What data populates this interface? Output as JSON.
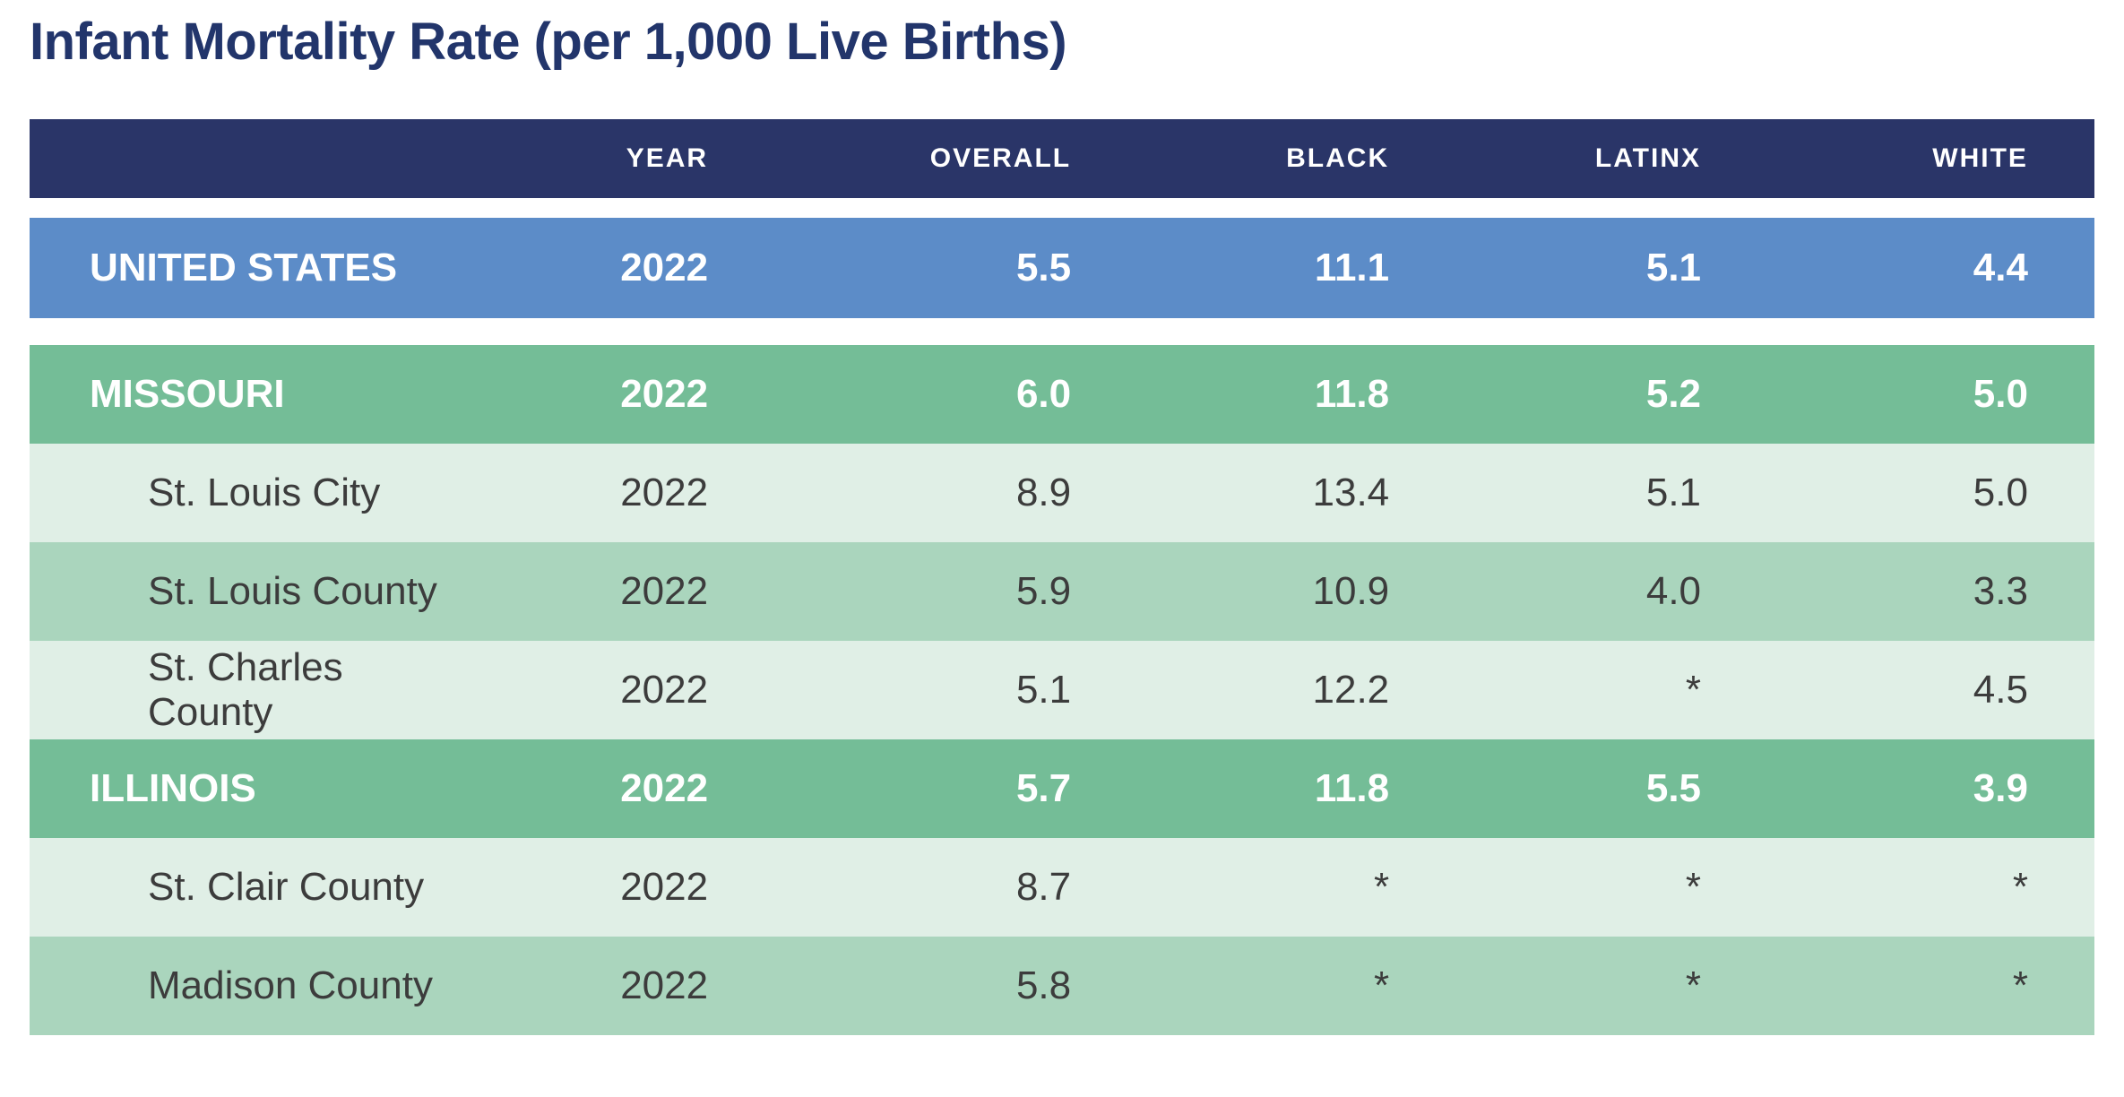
{
  "chart_data": {
    "type": "table",
    "title": "Infant Mortality Rate (per 1,000 Live Births)",
    "columns": [
      "",
      "YEAR",
      "OVERALL",
      "BLACK",
      "LATINX",
      "WHITE"
    ],
    "rows": [
      {
        "name": "UNITED STATES",
        "level": "national",
        "year": "2022",
        "overall": "5.5",
        "black": "11.1",
        "latinx": "5.1",
        "white": "4.4"
      },
      {
        "name": "MISSOURI",
        "level": "state",
        "year": "2022",
        "overall": "6.0",
        "black": "11.8",
        "latinx": "5.2",
        "white": "5.0"
      },
      {
        "name": "St. Louis City",
        "level": "county",
        "year": "2022",
        "overall": "8.9",
        "black": "13.4",
        "latinx": "5.1",
        "white": "5.0"
      },
      {
        "name": "St. Louis County",
        "level": "county",
        "year": "2022",
        "overall": "5.9",
        "black": "10.9",
        "latinx": "4.0",
        "white": "3.3"
      },
      {
        "name": "St. Charles County",
        "level": "county",
        "year": "2022",
        "overall": "5.1",
        "black": "12.2",
        "latinx": "*",
        "white": "4.5"
      },
      {
        "name": "ILLINOIS",
        "level": "state",
        "year": "2022",
        "overall": "5.7",
        "black": "11.8",
        "latinx": "5.5",
        "white": "3.9"
      },
      {
        "name": "St. Clair County",
        "level": "county",
        "year": "2022",
        "overall": "8.7",
        "black": "*",
        "latinx": "*",
        "white": "*"
      },
      {
        "name": "Madison County",
        "level": "county",
        "year": "2022",
        "overall": "5.8",
        "black": "*",
        "latinx": "*",
        "white": "*"
      }
    ]
  },
  "colors": {
    "header_bg": "#2A3568",
    "national_row_bg": "#5C8CC8",
    "state_row_bg": "#74BD97",
    "county_row_light_bg": "#E0EFE6",
    "county_row_medium_bg": "#AAD5BD",
    "title_text": "#22356B",
    "light_text": "#FFFFFF",
    "dark_text": "#3C3C3C"
  }
}
